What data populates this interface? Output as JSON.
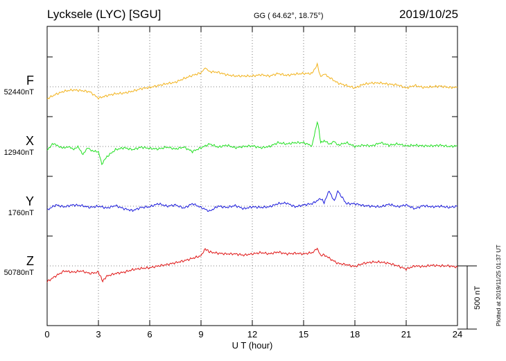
{
  "header": {
    "station": "Lycksele (LYC)  [SGU]",
    "coords": "GG ( 64.62°,  18.75°)",
    "date": "2019/10/25"
  },
  "plotted": "Plotted at 2019/11/25 01:37 UT",
  "chart_data": {
    "type": "line",
    "xlabel": "U T (hour)",
    "xlim": [
      0,
      24
    ],
    "xticks": [
      "0",
      "3",
      "6",
      "9",
      "12",
      "15",
      "18",
      "21",
      "24"
    ],
    "grid": true,
    "scale_bar": {
      "label": "500 nT",
      "value_nT": 500
    },
    "series": [
      {
        "name": "F",
        "baseline": "52440nT",
        "color": "#f2b21a",
        "x": [
          0,
          0.5,
          1,
          1.5,
          2,
          2.5,
          3,
          3.5,
          4,
          4.5,
          5,
          5.5,
          6,
          6.5,
          7,
          7.5,
          8,
          8.5,
          9,
          9.25,
          9.5,
          10,
          10.5,
          11,
          11.5,
          12,
          12.5,
          13,
          13.5,
          14,
          14.5,
          15,
          15.5,
          15.8,
          15.9,
          16,
          16.2,
          16.5,
          17,
          17.5,
          18,
          18.5,
          19,
          19.5,
          20,
          20.5,
          21,
          21.5,
          22,
          22.5,
          23,
          23.5,
          24
        ],
        "y": [
          -95,
          -60,
          -35,
          -25,
          -30,
          -40,
          -90,
          -70,
          -55,
          -50,
          -35,
          -15,
          -5,
          10,
          25,
          35,
          65,
          90,
          110,
          150,
          120,
          115,
          95,
          85,
          85,
          85,
          95,
          85,
          105,
          90,
          100,
          105,
          105,
          180,
          120,
          80,
          100,
          75,
          30,
          10,
          -10,
          20,
          30,
          30,
          20,
          15,
          -10,
          10,
          -5,
          0,
          5,
          -5,
          -5
        ]
      },
      {
        "name": "X",
        "baseline": "12940nT",
        "color": "#22e022",
        "x": [
          0,
          0.3,
          0.6,
          0.9,
          1.2,
          1.5,
          1.8,
          2.1,
          2.4,
          2.7,
          3,
          3.2,
          3.5,
          4,
          4.5,
          5,
          5.5,
          6,
          6.5,
          7,
          7.5,
          8,
          8.5,
          9,
          9.5,
          10,
          10.5,
          11,
          11.5,
          12,
          12.5,
          13,
          13.5,
          14,
          14.5,
          15,
          15.5,
          15.8,
          15.9,
          16,
          16.2,
          16.5,
          16.8,
          17,
          17.5,
          18,
          18.5,
          19,
          19.5,
          20,
          20.5,
          21,
          21.5,
          22,
          22.5,
          23,
          23.5,
          24
        ],
        "y": [
          -30,
          20,
          10,
          -15,
          0,
          -20,
          -5,
          -60,
          -10,
          -40,
          -40,
          -140,
          -80,
          -25,
          -10,
          -25,
          -5,
          -15,
          -20,
          -5,
          -20,
          -5,
          -40,
          -10,
          20,
          -5,
          10,
          -10,
          0,
          5,
          -10,
          0,
          30,
          20,
          30,
          30,
          5,
          200,
          130,
          30,
          45,
          20,
          40,
          10,
          30,
          0,
          10,
          5,
          30,
          10,
          20,
          5,
          10,
          5,
          5,
          10,
          0,
          5
        ]
      },
      {
        "name": "Y",
        "baseline": "1760nT",
        "color": "#1a1adc",
        "x": [
          0,
          0.5,
          1,
          1.5,
          2,
          2.5,
          3,
          3.5,
          4,
          4.5,
          5,
          5.5,
          6,
          6.5,
          7,
          7.5,
          8,
          8.5,
          9,
          9.5,
          10,
          10.5,
          11,
          11.5,
          12,
          12.5,
          13,
          13.5,
          14,
          14.5,
          15,
          15.5,
          16,
          16.2,
          16.5,
          16.8,
          17,
          17.5,
          18,
          18.5,
          19,
          19.5,
          20,
          20.5,
          21,
          21.5,
          22,
          22.5,
          23,
          23.5,
          24
        ],
        "y": [
          -30,
          10,
          -5,
          10,
          5,
          -10,
          0,
          -15,
          5,
          -20,
          -35,
          -10,
          -5,
          20,
          0,
          10,
          -15,
          20,
          -10,
          -40,
          0,
          -10,
          5,
          -20,
          -5,
          -10,
          -5,
          20,
          25,
          -5,
          10,
          20,
          60,
          30,
          120,
          40,
          120,
          20,
          20,
          5,
          0,
          -5,
          15,
          -5,
          10,
          -20,
          5,
          -5,
          0,
          -10,
          0
        ]
      },
      {
        "name": "Z",
        "baseline": "50780nT",
        "color": "#e01515",
        "x": [
          0,
          0.5,
          1,
          1.5,
          2,
          2.5,
          3,
          3.25,
          3.5,
          4,
          4.5,
          5,
          5.5,
          6,
          6.5,
          7,
          7.5,
          8,
          8.5,
          9,
          9.25,
          9.5,
          10,
          10.5,
          11,
          11.5,
          12,
          12.5,
          13,
          13.5,
          14,
          14.5,
          15,
          15.5,
          15.8,
          15.9,
          16,
          16.2,
          16.5,
          17,
          17.5,
          18,
          18.5,
          19,
          19.5,
          20,
          20.5,
          21,
          21.5,
          22,
          22.5,
          23,
          23.5,
          24
        ],
        "y": [
          -125,
          -80,
          -40,
          -50,
          -40,
          -60,
          -50,
          -120,
          -80,
          -60,
          -50,
          -30,
          -20,
          -15,
          0,
          10,
          25,
          40,
          60,
          80,
          135,
          110,
          100,
          95,
          95,
          85,
          95,
          105,
          95,
          110,
          95,
          100,
          95,
          105,
          135,
          110,
          80,
          90,
          60,
          20,
          10,
          -5,
          20,
          30,
          30,
          20,
          0,
          -25,
          0,
          -5,
          5,
          0,
          0,
          -10
        ]
      }
    ]
  }
}
